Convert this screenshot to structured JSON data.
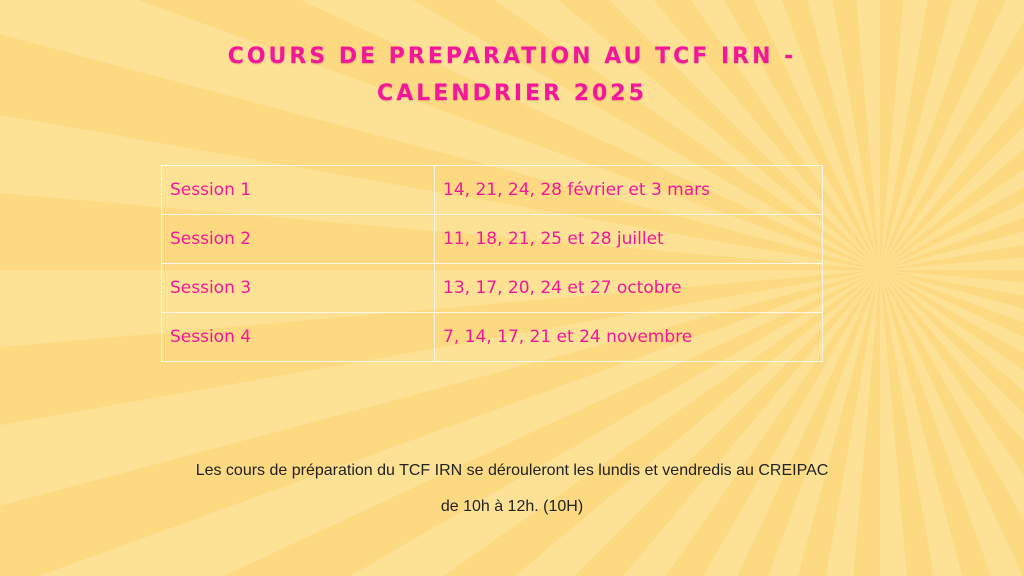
{
  "title": {
    "line1": "COURS DE PREPARATION AU TCF IRN -",
    "line2": "CALENDRIER 2025"
  },
  "sessions": [
    {
      "name": "Session 1",
      "dates": "14, 21, 24, 28 février et 3 mars"
    },
    {
      "name": "Session 2",
      "dates": "11, 18, 21, 25 et 28 juillet"
    },
    {
      "name": "Session 3",
      "dates": "13, 17, 20, 24 et 27 octobre"
    },
    {
      "name": "Session 4",
      "dates": "7, 14, 17, 21 et 24 novembre"
    }
  ],
  "footer": {
    "line1": "Les cours de préparation du TCF IRN se dérouleront les lundis et vendredis au CREIPAC",
    "line2": "de 10h à 12h. (10H)"
  },
  "colors": {
    "accent": "#f4179b",
    "background": "#fdd985"
  }
}
